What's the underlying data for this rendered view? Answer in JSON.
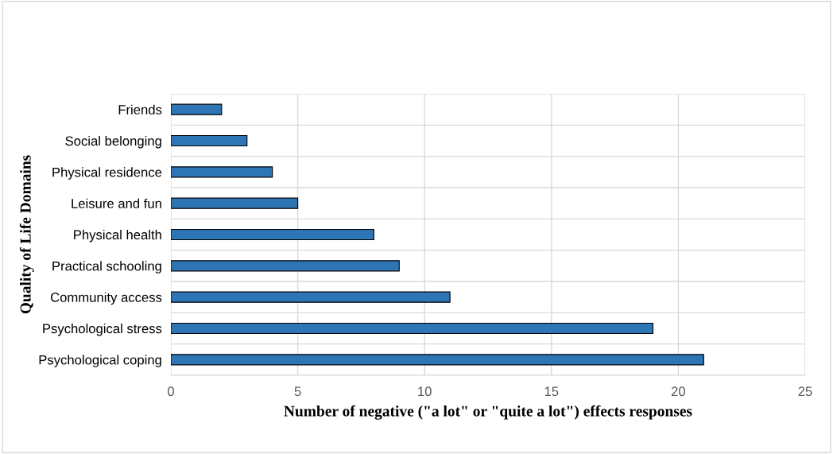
{
  "chart_data": {
    "type": "bar",
    "orientation": "horizontal",
    "categories": [
      "Friends",
      "Social belonging",
      "Physical residence",
      "Leisure and fun",
      "Physical health",
      "Practical schooling",
      "Community access",
      "Psychological stress",
      "Psychological coping"
    ],
    "values": [
      2,
      3,
      4,
      5,
      8,
      9,
      11,
      19,
      21
    ],
    "color": "#2e75b6",
    "xlabel": "Number of negative (\"a lot\" or \"quite a lot\") effects responses",
    "ylabel": "Quality of Life Domains",
    "xlim": [
      0,
      25
    ],
    "xticks": [
      0,
      5,
      10,
      15,
      20,
      25
    ],
    "grid": true,
    "legend": false
  }
}
